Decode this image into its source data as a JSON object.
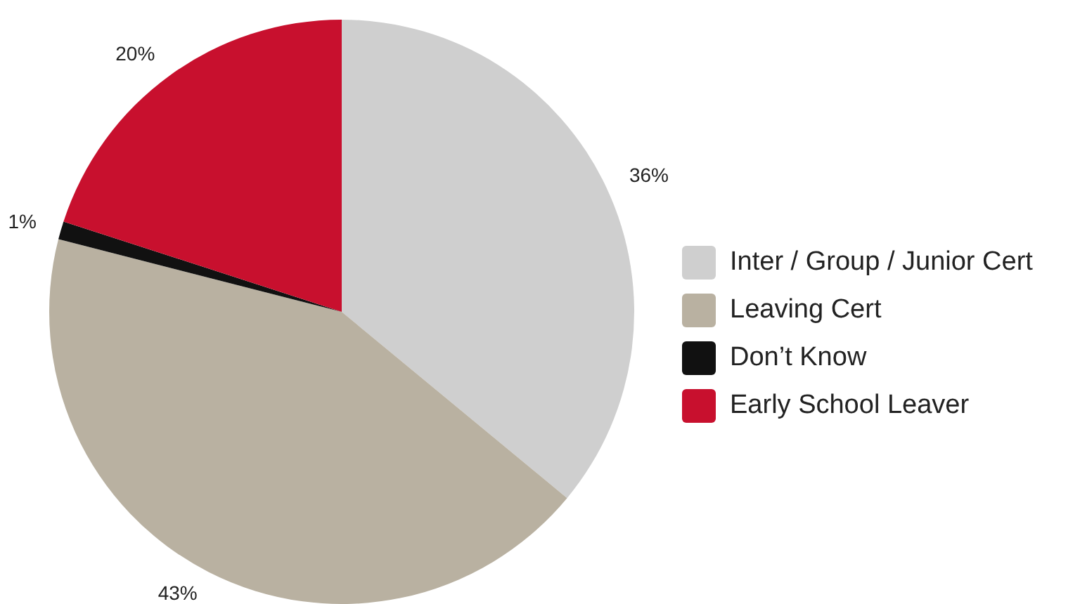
{
  "chart_data": {
    "type": "pie",
    "categories": [
      "Inter / Group / Junior Cert",
      "Leaving Cert",
      "Don’t Know",
      "Early School Leaver"
    ],
    "values": [
      36,
      43,
      1,
      20
    ],
    "colors": [
      "#cfcfcf",
      "#b9b1a1",
      "#111111",
      "#c8102e"
    ],
    "value_labels": [
      "36%",
      "43%",
      "1%",
      "20%"
    ],
    "legend": "right"
  }
}
